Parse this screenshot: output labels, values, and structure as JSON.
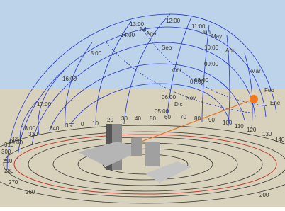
{
  "hour_labels": [
    "12:00",
    "11:00",
    "13:00",
    "14:00",
    "15:00",
    "16:00",
    "17:00",
    "18:00",
    "19:00",
    "10:00",
    "09:00",
    "08:00",
    "07:00",
    "06:00",
    "05:00"
  ],
  "month_labels": [
    "Jul",
    "Ago",
    "Jun",
    "May",
    "Sep",
    "Abr",
    "Oct",
    "Mar",
    "Nov",
    "Feb",
    "Dic",
    "Ene"
  ],
  "azimuth_labels": [
    "350",
    "0",
    "10",
    "20",
    "30",
    "40",
    "50",
    "60",
    "70",
    "80",
    "90",
    "100",
    "110",
    "120",
    "130",
    "140",
    "200",
    "260",
    "270",
    "280",
    "290",
    "300",
    "310",
    "320",
    "330",
    "340"
  ]
}
